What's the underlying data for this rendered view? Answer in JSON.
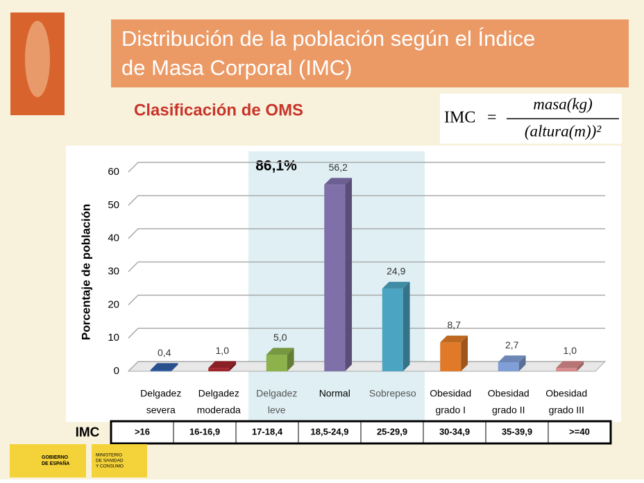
{
  "header": {
    "title_lines": [
      "Distribución de la población según el Índice",
      "de Masa Corporal (IMC)"
    ],
    "subtitle": "Clasificación de OMS"
  },
  "formula": {
    "lhs": "IMC",
    "equals": "=",
    "numerator": "masa(kg)",
    "denominator": "(altura(m))²"
  },
  "chart_data": {
    "type": "bar",
    "y_label": "Porcentaje de población",
    "annotation": "86,1%",
    "categories": [
      [
        "Delgadez",
        "severa"
      ],
      [
        "Delgadez",
        "moderada"
      ],
      [
        "Delgadez",
        "leve"
      ],
      [
        "Normal"
      ],
      [
        "Sobrepeso"
      ],
      [
        "Obesidad",
        "grado I"
      ],
      [
        "Obesidad",
        "grado II"
      ],
      [
        "Obesidad",
        "grado III"
      ]
    ],
    "values": [
      0.4,
      1.0,
      5.0,
      56.2,
      24.9,
      8.7,
      2.7,
      1.0
    ],
    "value_labels": [
      "0,4",
      "1,0",
      "5,0",
      "56,2",
      "24,9",
      "8,7",
      "2,7",
      "1,0"
    ],
    "colors": [
      "#2f5ea6",
      "#a2242c",
      "#8db24c",
      "#8070aa",
      "#4ba5c2",
      "#e07a28",
      "#7f9fd6",
      "#d98a8a"
    ],
    "ylim": [
      0,
      60
    ],
    "yticks": [
      0,
      10,
      20,
      30,
      40,
      50,
      60
    ],
    "grid": true
  },
  "imc_row": {
    "label": "IMC",
    "ranges": [
      ">16",
      "16-16,9",
      "17-18,4",
      "18,5-24,9",
      "25-29,9",
      "30-34,9",
      "35-39,9",
      ">=40"
    ]
  },
  "footer": {
    "gov": [
      "GOBIERNO",
      "DE ESPAÑA"
    ],
    "ministry": [
      "MINISTERIO",
      "DE SANIDAD",
      "Y CONSUMO"
    ]
  }
}
